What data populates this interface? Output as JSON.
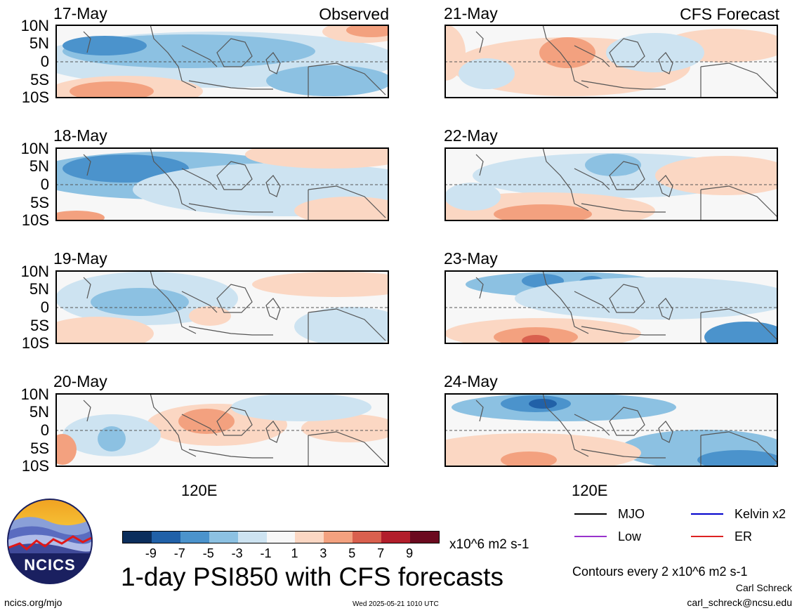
{
  "panels": [
    {
      "date": "17-May",
      "tag": "Observed",
      "pattern": 0
    },
    {
      "date": "18-May",
      "tag": "",
      "pattern": 1
    },
    {
      "date": "19-May",
      "tag": "",
      "pattern": 2
    },
    {
      "date": "20-May",
      "tag": "",
      "pattern": 3
    },
    {
      "date": "21-May",
      "tag": "CFS Forecast",
      "pattern": 4
    },
    {
      "date": "22-May",
      "tag": "",
      "pattern": 5
    },
    {
      "date": "23-May",
      "tag": "",
      "pattern": 6
    },
    {
      "date": "24-May",
      "tag": "",
      "pattern": 7
    }
  ],
  "lat_labels": [
    "10N",
    "5N",
    "0",
    "5S",
    "10S"
  ],
  "lon_label": "120E",
  "colorbar": {
    "ticks": [
      "-9",
      "-7",
      "-5",
      "-3",
      "-1",
      "1",
      "3",
      "5",
      "7",
      "9"
    ],
    "colors": [
      "#0b2e5c",
      "#2161a8",
      "#4b93cc",
      "#8cc1e2",
      "#cde3f1",
      "#f7f7f7",
      "#fbd7c3",
      "#f3a17f",
      "#d9604e",
      "#b21e2b",
      "#6b0a1f"
    ],
    "unit": "x10^6 m2 s-1"
  },
  "legend": [
    {
      "label": "MJO",
      "color": "#000000"
    },
    {
      "label": "Kelvin x2",
      "color": "#0000cc"
    },
    {
      "label": "Low",
      "color": "#9933cc"
    },
    {
      "label": "ER",
      "color": "#dd2222"
    }
  ],
  "contours_note": "Contours every 2 x10^6 m2 s-1",
  "title": "1-day PSI850 with CFS forecasts",
  "logo_text": "NCICS",
  "url": "ncics.org/mjo",
  "timestamp": "Wed 2025-05-21 1010 UTC",
  "author": "Carl Schreck",
  "email": "carl_schreck@ncsu.edu"
}
